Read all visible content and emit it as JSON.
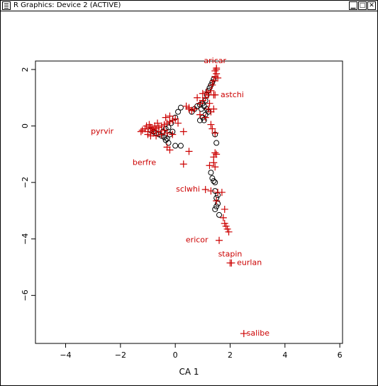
{
  "window": {
    "title": "R Graphics: Device 2 (ACTIVE)",
    "buttons": [
      {
        "name": "minimize-button",
        "glyph": "▁"
      },
      {
        "name": "maximize-button",
        "glyph": "□"
      },
      {
        "name": "close-button",
        "glyph": "✕"
      }
    ]
  },
  "chart_data": {
    "type": "scatter",
    "title": "",
    "xlabel": "CA 1",
    "ylabel": "",
    "xlim": [
      -5.1,
      6.1
    ],
    "ylim": [
      -7.7,
      2.3
    ],
    "xticks": [
      -4,
      -2,
      0,
      2,
      4,
      6
    ],
    "yticks": [
      2,
      0,
      -2,
      -4,
      -6
    ],
    "grid": false,
    "colors": {
      "species": "#cc0000",
      "sites": "#000000"
    },
    "series": [
      {
        "marker": "circle",
        "color": "#000000",
        "points": [
          [
            -0.9,
            -0.15
          ],
          [
            -0.8,
            -0.2
          ],
          [
            -0.7,
            -0.25
          ],
          [
            -0.6,
            -0.3
          ],
          [
            -0.5,
            -0.35
          ],
          [
            -0.4,
            -0.4
          ],
          [
            -0.3,
            -0.45
          ],
          [
            -0.2,
            -0.3
          ],
          [
            -0.1,
            -0.2
          ],
          [
            0.0,
            0.3
          ],
          [
            0.1,
            0.5
          ],
          [
            0.2,
            0.65
          ],
          [
            -0.45,
            -0.2
          ],
          [
            -0.35,
            -0.1
          ],
          [
            -0.25,
            -0.05
          ],
          [
            -0.15,
            0.1
          ],
          [
            -0.35,
            -0.5
          ],
          [
            -0.25,
            -0.6
          ],
          [
            0.0,
            -0.7
          ],
          [
            0.2,
            -0.7
          ],
          [
            0.6,
            0.5
          ],
          [
            0.7,
            0.6
          ],
          [
            0.8,
            0.7
          ],
          [
            0.9,
            0.75
          ],
          [
            1.0,
            0.8
          ],
          [
            1.05,
            0.7
          ],
          [
            0.95,
            0.6
          ],
          [
            1.0,
            0.3
          ],
          [
            1.05,
            0.2
          ],
          [
            0.9,
            0.2
          ],
          [
            1.1,
            0.4
          ],
          [
            1.15,
            0.6
          ],
          [
            1.2,
            0.5
          ],
          [
            1.1,
            0.9
          ],
          [
            1.15,
            1.1
          ],
          [
            1.2,
            1.25
          ],
          [
            1.25,
            1.35
          ],
          [
            1.3,
            1.45
          ],
          [
            1.35,
            1.55
          ],
          [
            1.4,
            1.65
          ],
          [
            1.3,
            -1.65
          ],
          [
            1.35,
            -1.85
          ],
          [
            1.4,
            -1.95
          ],
          [
            1.45,
            -2.0
          ],
          [
            1.45,
            -2.3
          ],
          [
            1.55,
            -2.45
          ],
          [
            1.5,
            -2.55
          ],
          [
            1.55,
            -2.75
          ],
          [
            1.5,
            -2.85
          ],
          [
            1.45,
            -2.95
          ],
          [
            1.6,
            -3.15
          ],
          [
            1.5,
            -0.6
          ],
          [
            1.45,
            -0.3
          ]
        ]
      },
      {
        "marker": "plus",
        "color": "#cc0000",
        "points": [
          [
            -1.2,
            -0.15
          ],
          [
            -1.1,
            -0.1
          ],
          [
            -1.0,
            -0.2
          ],
          [
            -0.9,
            -0.05
          ],
          [
            -0.8,
            -0.15
          ],
          [
            -0.7,
            -0.1
          ],
          [
            -0.6,
            -0.05
          ],
          [
            -0.5,
            0.0
          ],
          [
            -0.4,
            0.05
          ],
          [
            -0.3,
            0.1
          ],
          [
            -0.2,
            0.15
          ],
          [
            -0.1,
            0.2
          ],
          [
            0.0,
            0.25
          ],
          [
            -1.0,
            -0.3
          ],
          [
            -0.9,
            -0.35
          ],
          [
            -0.8,
            -0.25
          ],
          [
            -0.7,
            -0.35
          ],
          [
            -0.6,
            -0.2
          ],
          [
            -0.5,
            -0.3
          ],
          [
            -0.4,
            -0.15
          ],
          [
            -0.3,
            -0.25
          ],
          [
            -1.05,
            0.0
          ],
          [
            -0.95,
            0.05
          ],
          [
            -0.85,
            -0.1
          ],
          [
            -0.75,
            0.0
          ],
          [
            -0.65,
            0.1
          ],
          [
            -0.2,
            0.35
          ],
          [
            -0.35,
            0.3
          ],
          [
            0.1,
            0.1
          ],
          [
            -0.1,
            -0.3
          ],
          [
            0.3,
            -0.2
          ],
          [
            -0.3,
            -0.75
          ],
          [
            -0.2,
            -0.85
          ],
          [
            0.5,
            -0.9
          ],
          [
            0.4,
            0.7
          ],
          [
            0.5,
            0.65
          ],
          [
            0.6,
            0.55
          ],
          [
            0.7,
            0.6
          ],
          [
            0.8,
            1.0
          ],
          [
            0.9,
            0.8
          ],
          [
            1.0,
            0.9
          ],
          [
            1.1,
            1.0
          ],
          [
            1.2,
            1.1
          ],
          [
            1.0,
            1.15
          ],
          [
            0.9,
            0.4
          ],
          [
            1.2,
            0.6
          ],
          [
            1.3,
            0.5
          ],
          [
            1.4,
            0.6
          ],
          [
            1.1,
            0.3
          ],
          [
            1.25,
            0.8
          ],
          [
            1.15,
            1.2
          ],
          [
            1.3,
            1.25
          ],
          [
            1.35,
            1.45
          ],
          [
            1.4,
            1.6
          ],
          [
            1.45,
            1.75
          ],
          [
            1.5,
            1.85
          ],
          [
            1.45,
            1.95
          ],
          [
            1.5,
            2.0
          ],
          [
            1.55,
            1.7
          ],
          [
            1.4,
            1.1
          ],
          [
            1.3,
            0.05
          ],
          [
            1.35,
            -0.1
          ],
          [
            1.45,
            -0.25
          ],
          [
            1.4,
            -1.1
          ],
          [
            1.45,
            -0.95
          ],
          [
            1.5,
            -1.0
          ],
          [
            1.4,
            -1.3
          ],
          [
            1.45,
            -1.45
          ],
          [
            1.25,
            -1.4
          ],
          [
            1.3,
            -2.3
          ],
          [
            1.55,
            -2.35
          ],
          [
            1.7,
            -2.35
          ],
          [
            1.5,
            -2.65
          ],
          [
            1.8,
            -2.95
          ],
          [
            1.75,
            -3.25
          ],
          [
            1.8,
            -3.45
          ],
          [
            1.85,
            -3.55
          ],
          [
            1.9,
            -3.65
          ],
          [
            1.95,
            -3.75
          ],
          [
            0.5,
            0.6
          ]
        ]
      }
    ],
    "labels": [
      {
        "text": "aricar",
        "x": 1.45,
        "y": 2.3,
        "mx": 1.5,
        "my": 2.05,
        "anchor": "middle"
      },
      {
        "text": "astchi",
        "x": 1.65,
        "y": 1.1,
        "mx": 1.45,
        "my": 1.1,
        "anchor": "start"
      },
      {
        "text": "pyrvir",
        "x": -2.25,
        "y": -0.2,
        "mx": -1.25,
        "my": -0.2,
        "anchor": "end"
      },
      {
        "text": "berfre",
        "x": -0.7,
        "y": -1.3,
        "mx": 0.3,
        "my": -1.35,
        "anchor": "end"
      },
      {
        "text": "sclwhi",
        "x": 0.9,
        "y": -2.25,
        "mx": 1.1,
        "my": -2.25,
        "anchor": "end"
      },
      {
        "text": "ericor",
        "x": 1.2,
        "y": -4.05,
        "mx": 1.6,
        "my": -4.05,
        "anchor": "end"
      },
      {
        "text": "stapin",
        "x": 2.0,
        "y": -4.55,
        "mx": 2.0,
        "my": -4.85,
        "anchor": "middle"
      },
      {
        "text": "eurlan",
        "x": 2.25,
        "y": -4.85,
        "mx": 2.05,
        "my": -4.85,
        "anchor": "start"
      },
      {
        "text": "salibe",
        "x": 2.6,
        "y": -7.35,
        "mx": 2.5,
        "my": -7.35,
        "anchor": "start"
      }
    ]
  }
}
